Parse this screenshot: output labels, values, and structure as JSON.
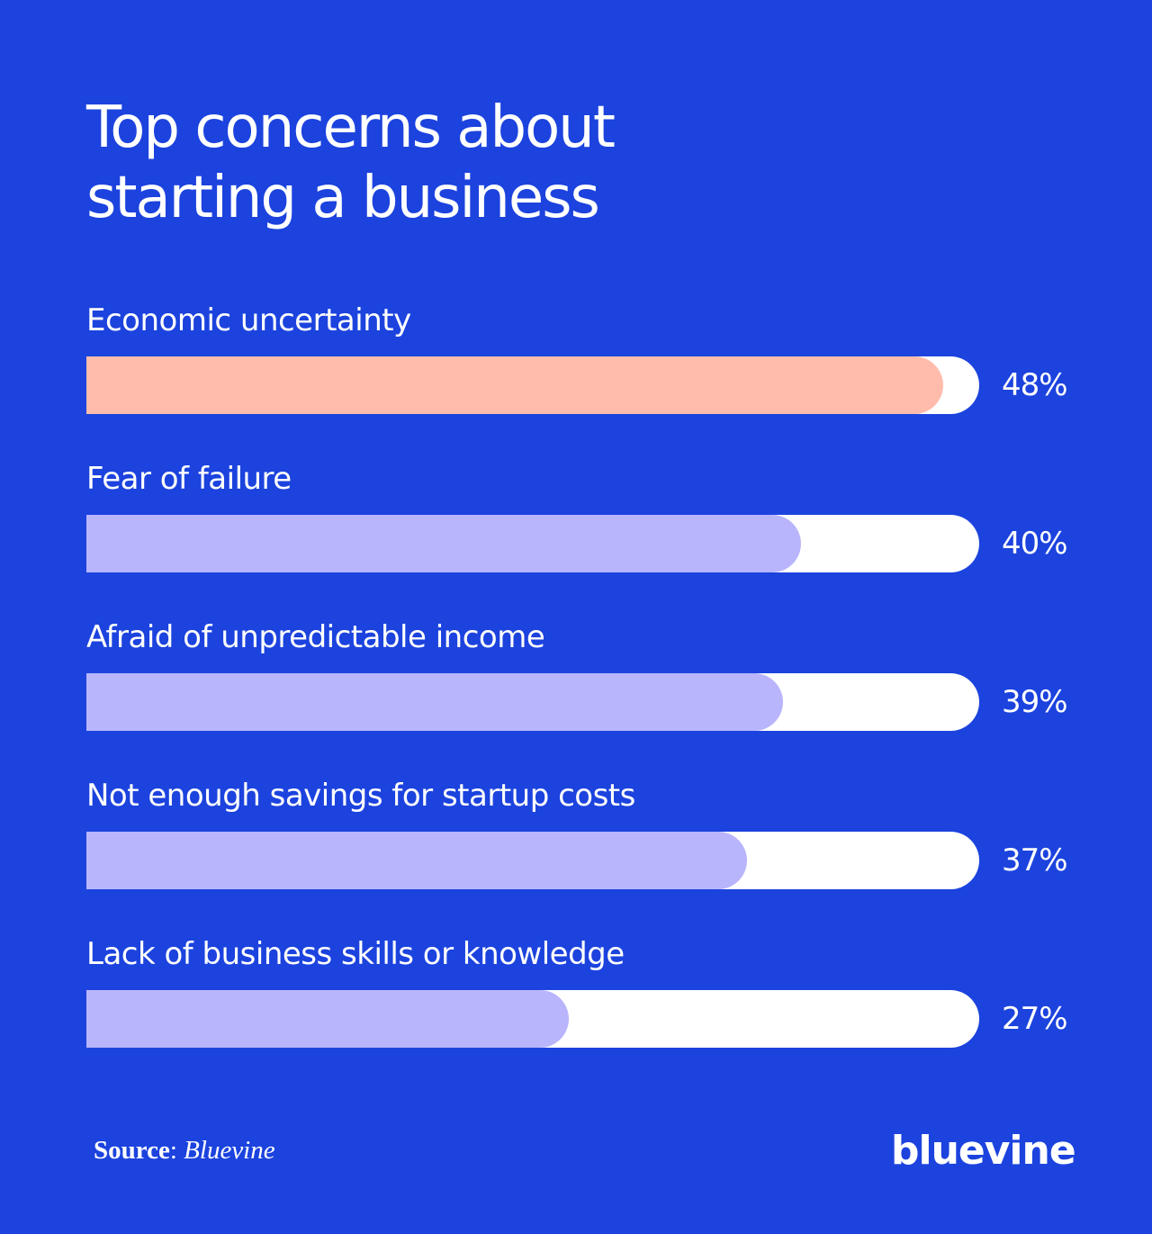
{
  "title_lines": [
    "Top concerns about",
    "starting a business"
  ],
  "source": {
    "label": "Source",
    "separator": ": ",
    "value": "Bluevine"
  },
  "brand": {
    "logo_text": "bluevine"
  },
  "colors": {
    "background": "#1c43de",
    "track": "#ffffff",
    "highlight_bar": "#ffbcad",
    "bar": "#b8b5fc",
    "text": "#ffffff"
  },
  "chart_data": {
    "type": "bar",
    "orientation": "horizontal",
    "title": "Top concerns about starting a business",
    "categories": [
      "Economic uncertainty",
      "Fear of failure",
      "Afraid of unpredictable income",
      "Not enough savings for startup costs",
      "Lack of business skills or knowledge"
    ],
    "values": [
      48,
      40,
      39,
      37,
      27
    ],
    "value_labels": [
      "48%",
      "40%",
      "39%",
      "37%",
      "27%"
    ],
    "unit": "%",
    "xlim": [
      0,
      50
    ],
    "highlight_index": 0,
    "grid": false,
    "legend": "none"
  }
}
